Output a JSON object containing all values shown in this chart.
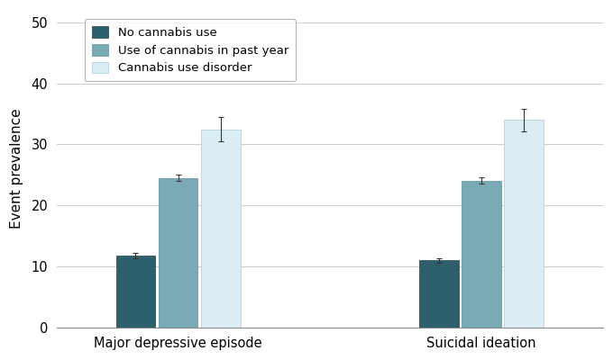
{
  "groups": [
    "Major depressive episode",
    "Suicidal ideation"
  ],
  "categories": [
    "No cannabis use",
    "Use of cannabis in past year",
    "Cannabis use disorder"
  ],
  "values": [
    [
      11.8,
      24.5,
      32.5
    ],
    [
      11.0,
      24.1,
      34.0
    ]
  ],
  "errors": [
    [
      0.4,
      0.5,
      2.0
    ],
    [
      0.4,
      0.5,
      1.8
    ]
  ],
  "colors": [
    "#2d5f6c",
    "#7aaab6",
    "#daedf5"
  ],
  "bar_edge_colors": [
    "#1e3f48",
    "#5a8fa0",
    "#a8ccd8"
  ],
  "ylabel": "Event prevalence",
  "ylim": [
    0,
    52
  ],
  "yticks": [
    0,
    10,
    20,
    30,
    40,
    50
  ],
  "background_color": "#ffffff",
  "grid_color": "#cccccc",
  "bar_width": 0.13,
  "group_centers": [
    1.0,
    2.0
  ]
}
